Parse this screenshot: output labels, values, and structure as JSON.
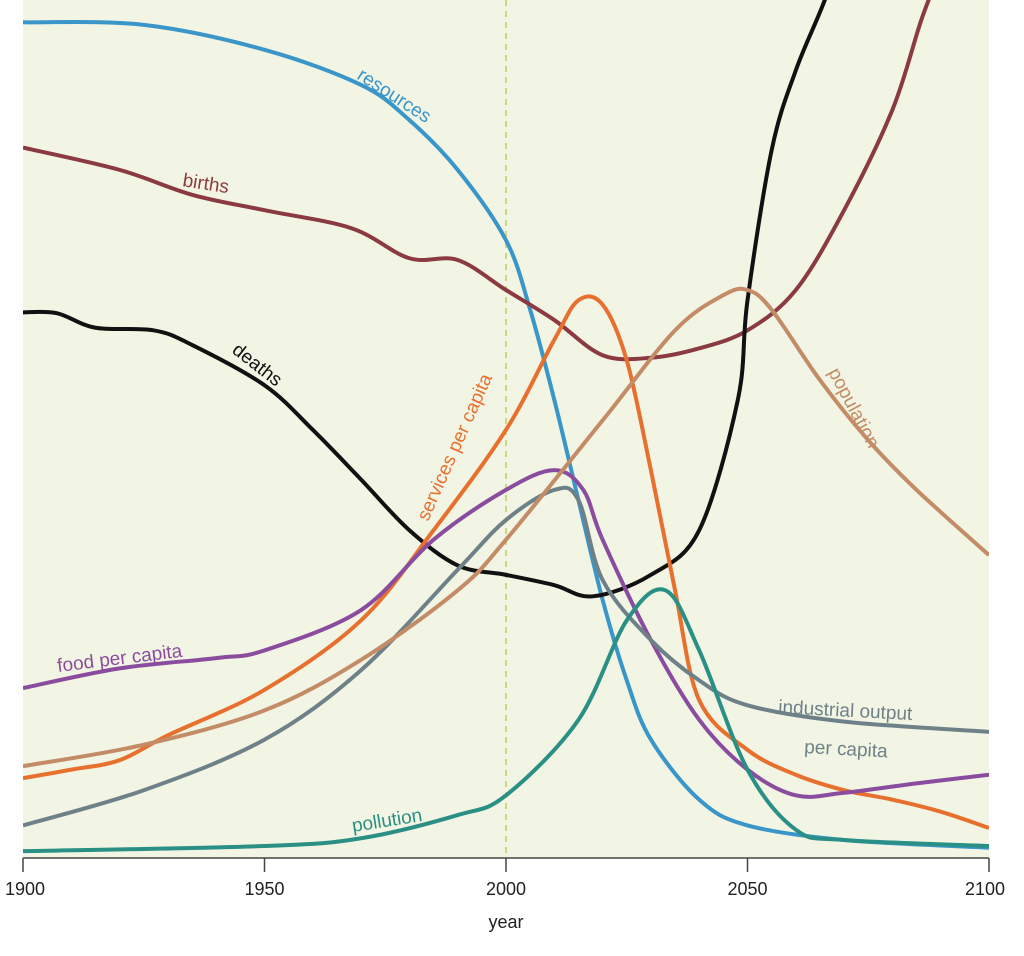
{
  "chart_data": {
    "type": "line",
    "title": "",
    "xlabel": "year",
    "ylabel": "",
    "xlim": [
      1900,
      2100
    ],
    "ylim": [
      0,
      100
    ],
    "xticks": [
      "1900",
      "1950",
      "2000",
      "2050",
      "2100"
    ],
    "grid": false,
    "background": "#f2f5e4",
    "reference_line": {
      "x": 2000,
      "style": "dashed",
      "color": "#c9d97f"
    },
    "series": [
      {
        "name": "resources",
        "color": "#3a95c9",
        "x": [
          1900,
          1925,
          1950,
          1970,
          1980,
          1990,
          2000,
          2005,
          2010,
          2015,
          2020,
          2025,
          2030,
          2040,
          2050,
          2070,
          2100
        ],
        "y": [
          97.4,
          97.1,
          94.2,
          90.1,
          86.0,
          80.2,
          72.0,
          63.9,
          53.4,
          41.7,
          30.1,
          20.7,
          13.8,
          6.8,
          3.8,
          2.1,
          1.2
        ]
      },
      {
        "name": "births",
        "color": "#8a3a40",
        "x": [
          1900,
          1920,
          1935,
          1950,
          1968,
          1980,
          1990,
          2000,
          2010,
          2020,
          2030,
          2040,
          2050,
          2060,
          2070,
          2080,
          2086,
          2090
        ],
        "y": [
          82.8,
          80.2,
          77.3,
          75.5,
          73.4,
          69.9,
          69.7,
          66.2,
          62.7,
          58.6,
          58.3,
          59.4,
          61.5,
          66.2,
          75.5,
          87.2,
          97.7,
          103.5
        ]
      },
      {
        "name": "deaths",
        "color": "#111111",
        "x": [
          1900,
          1907,
          1915,
          1927,
          1935,
          1950,
          1960,
          1970,
          1980,
          1990,
          2000,
          2010,
          2018,
          2030,
          2040,
          2048,
          2050,
          2055,
          2060,
          2066,
          2070
        ],
        "y": [
          63.6,
          63.5,
          61.8,
          61.5,
          59.8,
          55.1,
          49.9,
          44.1,
          38.2,
          34.1,
          33.0,
          31.8,
          30.5,
          33.0,
          38.2,
          53.4,
          65.0,
          82.5,
          91.8,
          100,
          107
        ]
      },
      {
        "name": "services per capita",
        "color": "#e8702f",
        "x": [
          1900,
          1910,
          1920,
          1930,
          1950,
          1970,
          1985,
          2000,
          2010,
          2015,
          2020,
          2025,
          2030,
          2035,
          2040,
          2050,
          2060,
          2070,
          2080,
          2090,
          2100
        ],
        "y": [
          9.3,
          10.3,
          11.4,
          14.3,
          19.6,
          27.7,
          38.2,
          49.9,
          60.4,
          65.0,
          64.5,
          58.0,
          45.2,
          31.2,
          18.4,
          12.6,
          9.7,
          7.9,
          6.8,
          5.4,
          3.5
        ]
      },
      {
        "name": "food per capita",
        "color": "#8a4c9e",
        "x": [
          1900,
          1920,
          1940,
          1950,
          1970,
          1985,
          2000,
          2010,
          2016,
          2020,
          2030,
          2040,
          2050,
          2060,
          2070,
          2085,
          2100
        ],
        "y": [
          19.8,
          22.1,
          23.3,
          24.2,
          28.9,
          37.1,
          42.9,
          45.2,
          42.9,
          37.1,
          25.4,
          16.1,
          10.3,
          7.3,
          7.6,
          8.7,
          9.7
        ]
      },
      {
        "name": "industrial output per capita",
        "color": "#6f8188",
        "x": [
          1900,
          1925,
          1950,
          1970,
          1990,
          2000,
          2010,
          2015,
          2020,
          2030,
          2040,
          2050,
          2070,
          2100
        ],
        "y": [
          3.8,
          7.9,
          13.8,
          21.9,
          33.6,
          39.4,
          42.9,
          41.7,
          32.4,
          25.4,
          20.7,
          17.8,
          15.9,
          14.7
        ]
      },
      {
        "name": "population",
        "color": "#c48c66",
        "x": [
          1900,
          1925,
          1950,
          1970,
          1990,
          2000,
          2020,
          2035,
          2045,
          2050,
          2055,
          2065,
          2075,
          2085,
          2100
        ],
        "y": [
          10.7,
          13.2,
          17.2,
          23.1,
          31.2,
          37.1,
          51.0,
          61.5,
          65.6,
          66.2,
          63.9,
          55.7,
          48.7,
          42.9,
          35.3
        ]
      },
      {
        "name": "pollution",
        "color": "#2a8f84",
        "x": [
          1900,
          1950,
          1970,
          1990,
          2000,
          2015,
          2025,
          2033,
          2040,
          2050,
          2060,
          2070,
          2100
        ],
        "y": [
          0.8,
          1.4,
          2.3,
          5.0,
          7.3,
          16.1,
          27.7,
          31.2,
          24.2,
          10.3,
          3.3,
          2.1,
          1.4
        ]
      }
    ],
    "annotations": {
      "resources": "resources",
      "births": "births",
      "deaths": "deaths",
      "services": "services per capita",
      "food": "food per capita",
      "industrial_1": "industrial output",
      "industrial_2": "per capita",
      "population": "population",
      "pollution": "pollution"
    }
  }
}
